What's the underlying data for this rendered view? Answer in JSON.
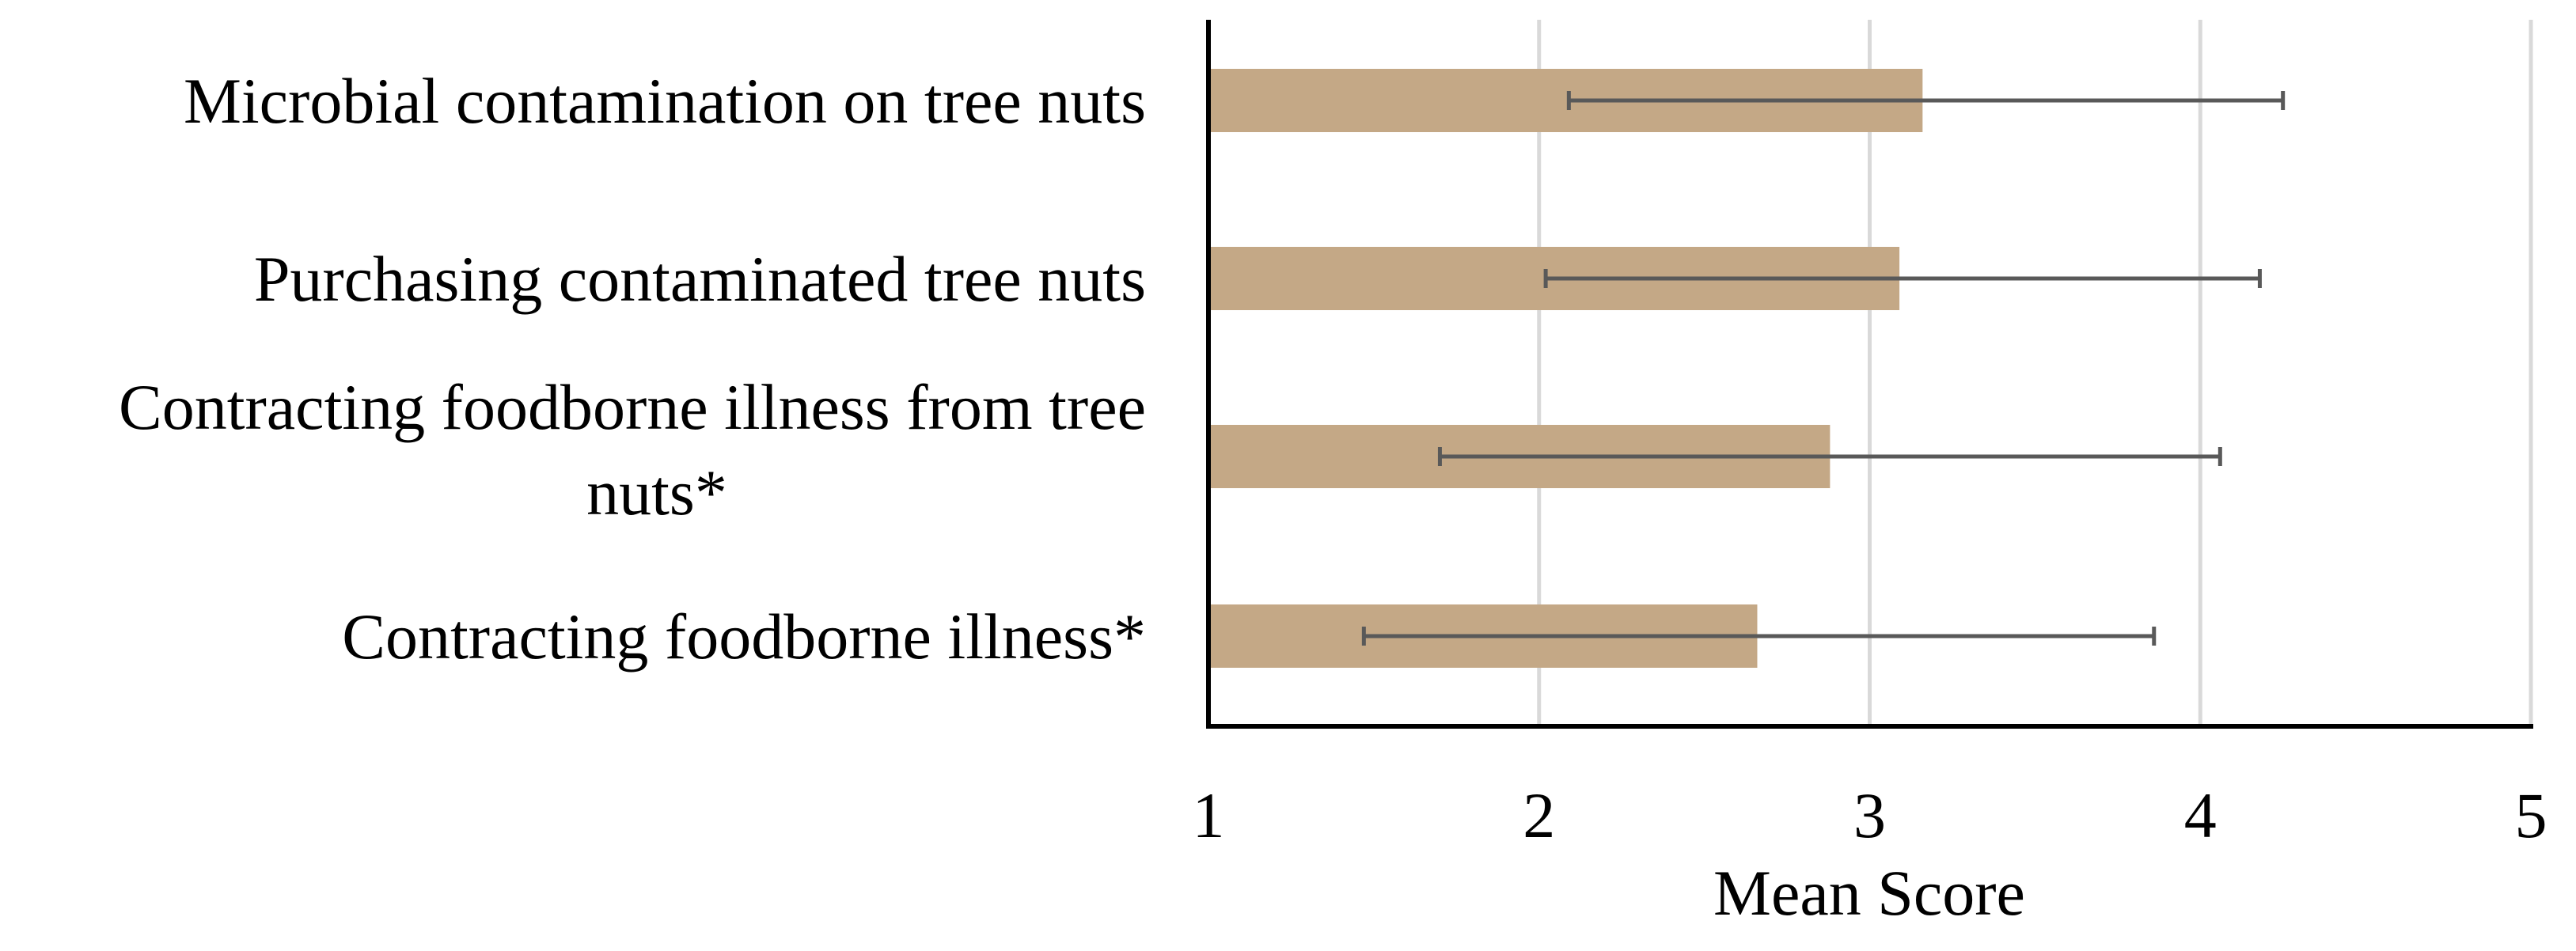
{
  "chart_data": {
    "type": "bar",
    "orientation": "horizontal",
    "categories": [
      "Microbial contamination on tree nuts",
      "Purchasing contaminated tree nuts",
      "Contracting foodborne illness from tree nuts*",
      "Contracting foodborne illness*"
    ],
    "category_label_lines": [
      [
        "Microbial contamination on tree nuts"
      ],
      [
        "Purchasing contaminated tree nuts"
      ],
      [
        "Contracting foodborne illness from tree",
        "nuts*"
      ],
      [
        "Contracting foodborne illness*"
      ]
    ],
    "values": [
      3.16,
      3.09,
      2.88,
      2.66
    ],
    "error_low": [
      2.09,
      2.02,
      1.7,
      1.47
    ],
    "error_high": [
      4.25,
      4.18,
      4.06,
      3.86
    ],
    "xlabel": "Mean Score",
    "ylabel": "",
    "title": "",
    "xlim": [
      1,
      5
    ],
    "xticks": [
      "1",
      "2",
      "3",
      "4",
      "5"
    ],
    "grid": "vertical",
    "bar_color": "#c4a886",
    "error_bar_color": "#595959",
    "grid_color": "#d9d9d9",
    "axis_color": "#000000"
  }
}
